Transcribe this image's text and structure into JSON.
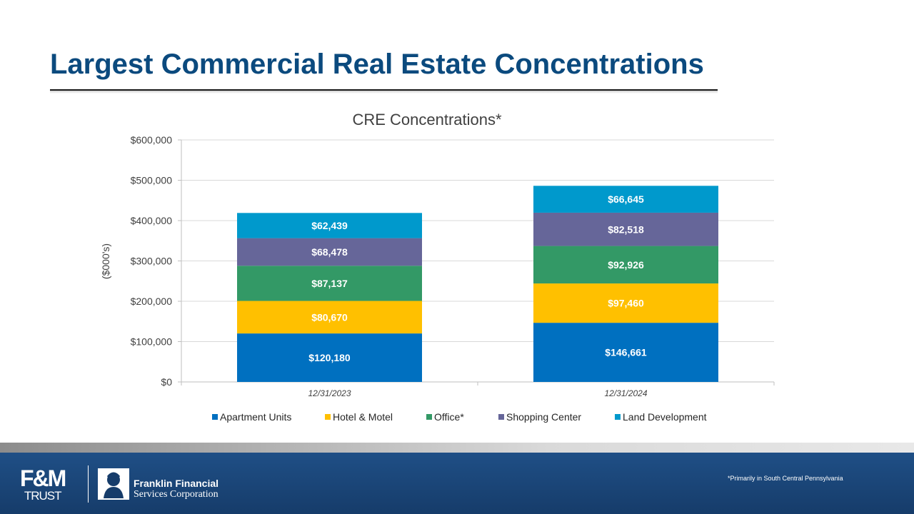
{
  "slide": {
    "title": "Largest Commercial Real Estate Concentrations",
    "footnote": "*Primarily in South Central Pennsylvania"
  },
  "logos": {
    "fm_mark": "F&M",
    "fm_trust": "TRUST",
    "ffsc_line1": "Franklin Financial",
    "ffsc_line2": "Services Corporation"
  },
  "colors": {
    "title": "#0b4a7e",
    "apartment": "#0070c0",
    "hotel": "#ffc000",
    "office": "#339966",
    "shopping": "#666699",
    "land": "#0099cc",
    "footer": "#1f4f86"
  },
  "chart_data": {
    "type": "bar",
    "stacked": true,
    "title": "CRE Concentrations*",
    "ylabel": "($000's)",
    "xlabel": "",
    "ylim": [
      0,
      600000
    ],
    "y_ticks": [
      0,
      100000,
      200000,
      300000,
      400000,
      500000,
      600000
    ],
    "y_tick_labels": [
      "$0",
      "$100,000",
      "$200,000",
      "$300,000",
      "$400,000",
      "$500,000",
      "$600,000"
    ],
    "categories": [
      "12/31/2023",
      "12/31/2024"
    ],
    "grid": true,
    "legend": "bottom",
    "series": [
      {
        "name": "Apartment Units",
        "color": "#0070c0",
        "values": [
          120180,
          146661
        ],
        "labels": [
          "$120,180",
          "$146,661"
        ]
      },
      {
        "name": "Hotel & Motel",
        "color": "#ffc000",
        "values": [
          80670,
          97460
        ],
        "labels": [
          "$80,670",
          "$97,460"
        ]
      },
      {
        "name": "Office*",
        "color": "#339966",
        "values": [
          87137,
          92926
        ],
        "labels": [
          "$87,137",
          "$92,926"
        ]
      },
      {
        "name": "Shopping Center",
        "color": "#666699",
        "values": [
          68478,
          82518
        ],
        "labels": [
          "$68,478",
          "$82,518"
        ]
      },
      {
        "name": "Land Development",
        "color": "#0099cc",
        "values": [
          62439,
          66645
        ],
        "labels": [
          "$62,439",
          "$66,645"
        ]
      }
    ]
  }
}
